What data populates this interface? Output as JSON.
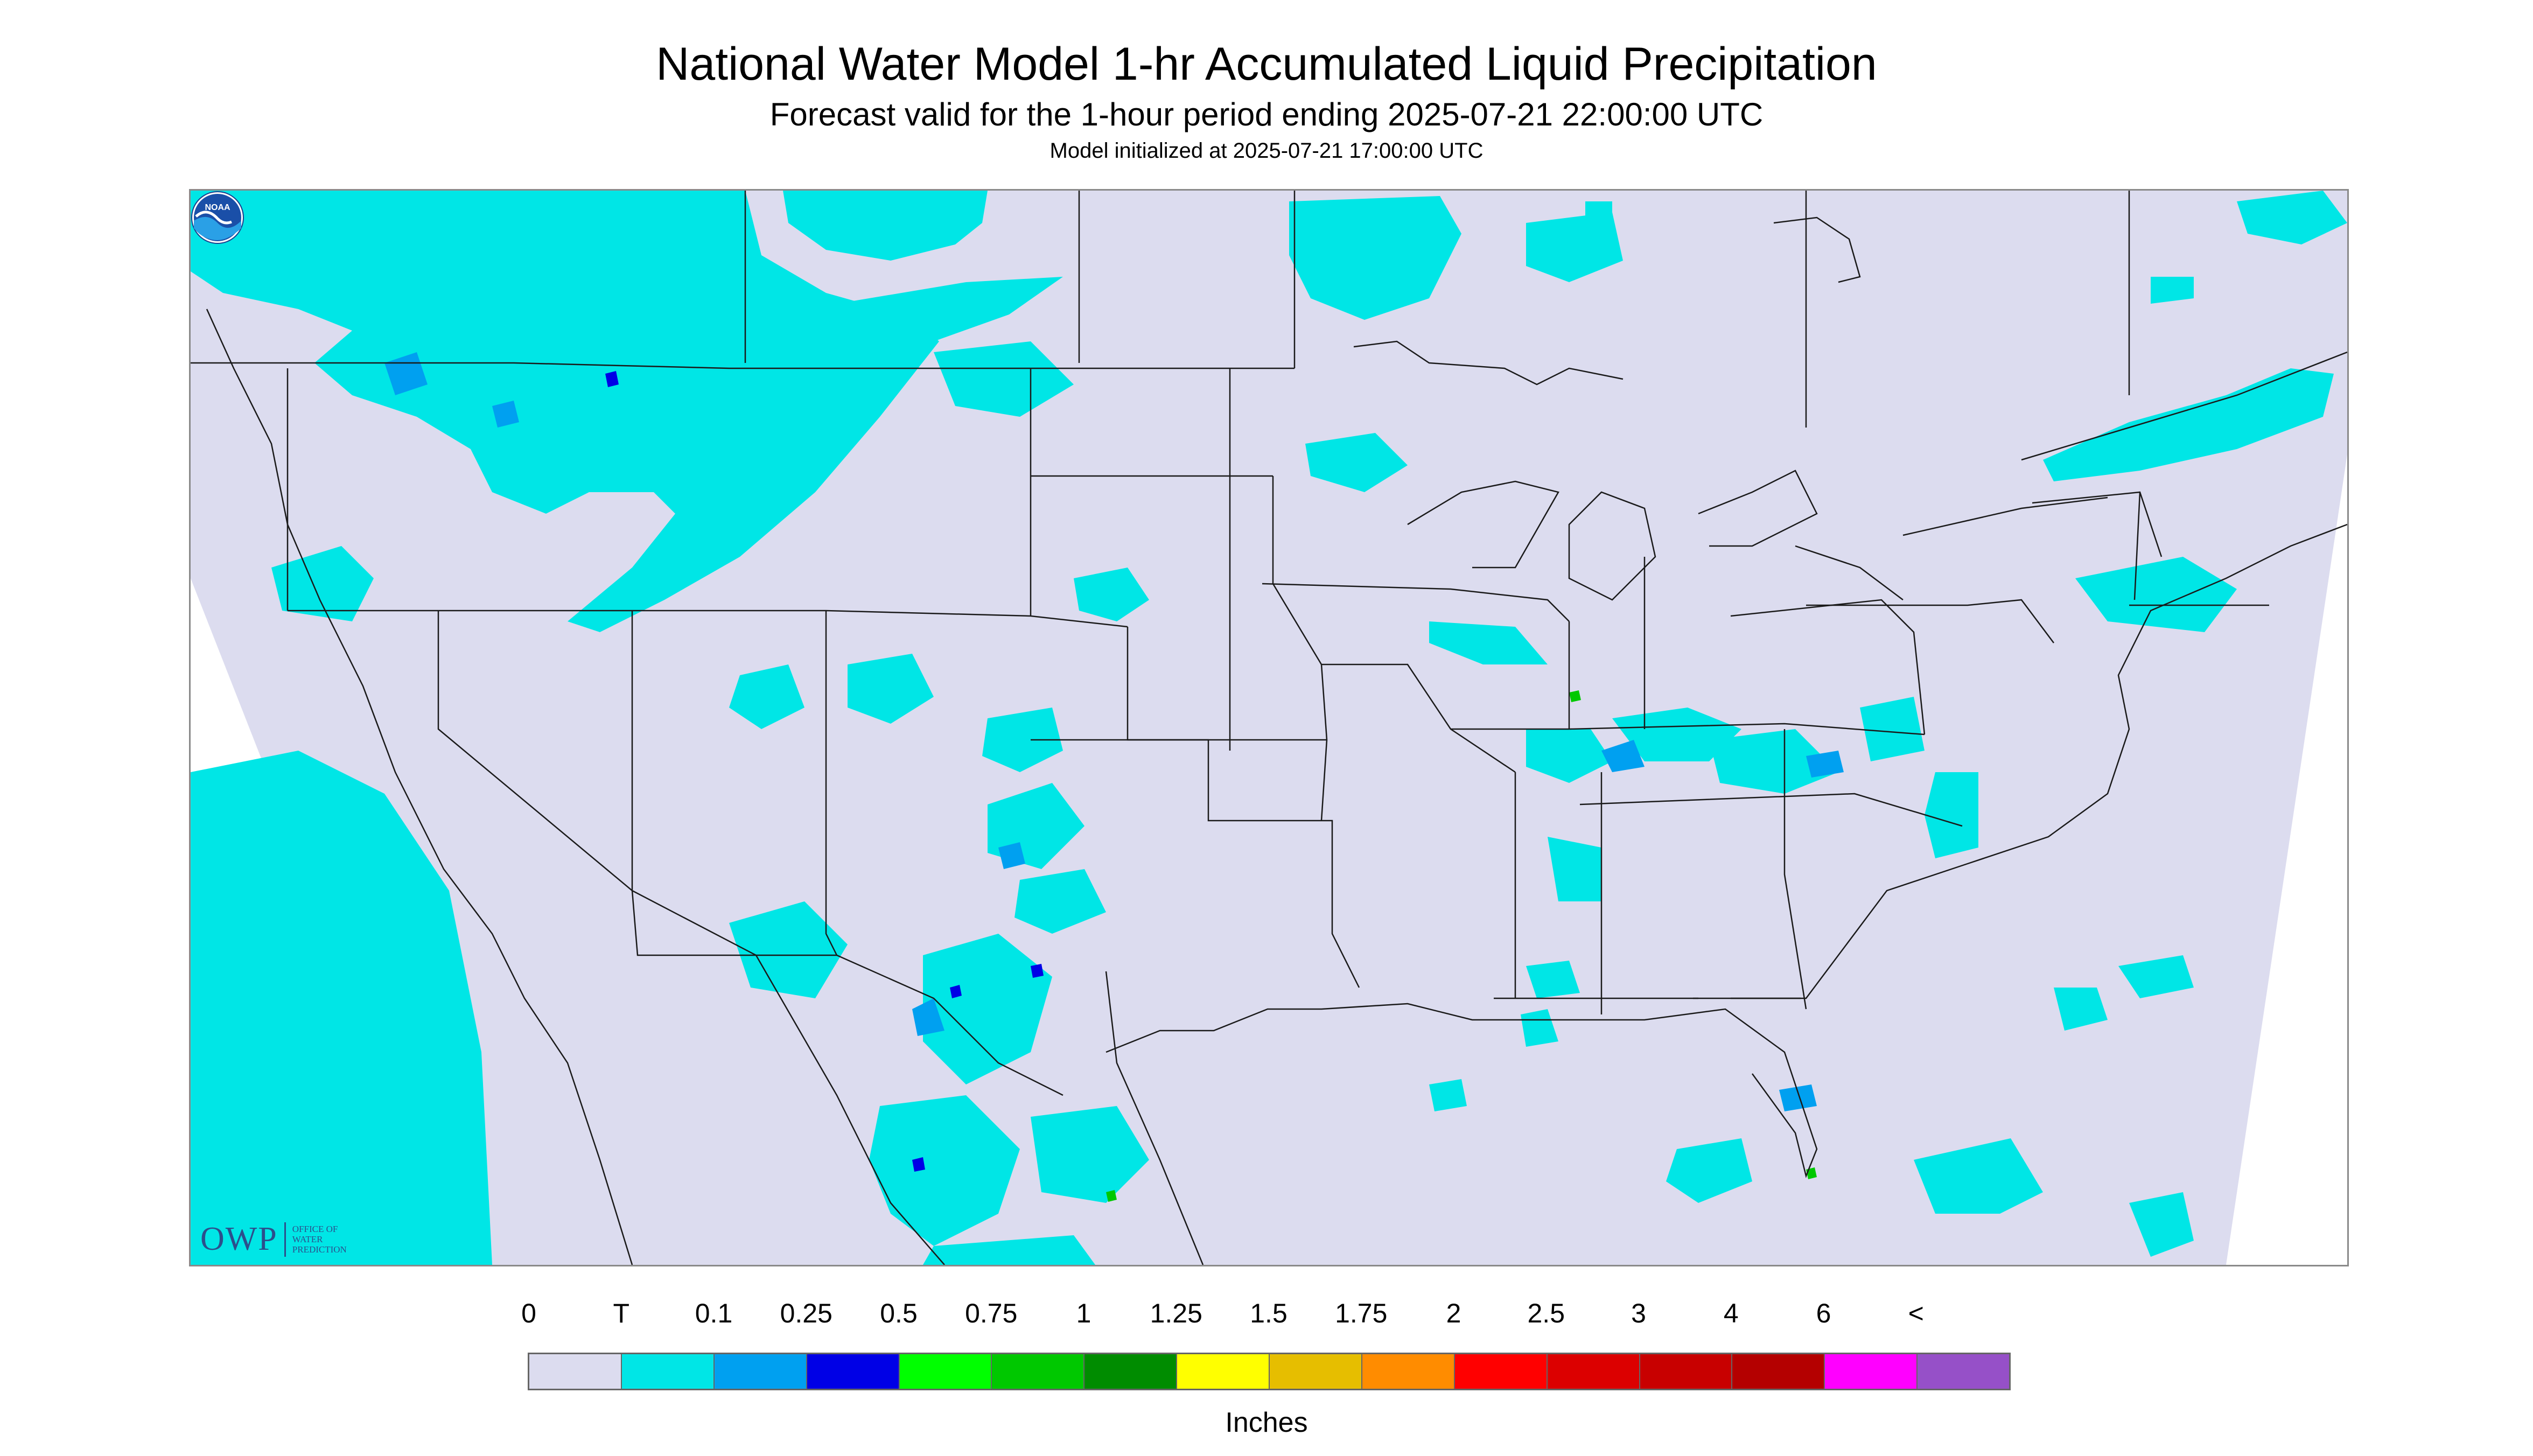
{
  "header": {
    "title": "National Water Model 1-hr Accumulated Liquid Precipitation",
    "subtitle": "Forecast valid for the 1-hour period ending 2025-07-21 22:00:00 UTC",
    "init_line": "Model initialized at 2025-07-21 17:00:00 UTC"
  },
  "map": {
    "background_color": "#dcdcef",
    "offgrid_color": "#ffffff",
    "boundary_color": "#1a1a1a",
    "precip_colors": {
      "trace": "#00e6e6",
      "light": "#00a0f0",
      "moderate": "#0000e6",
      "heavy": "#00c800"
    }
  },
  "logos": {
    "owp_mark": "OWP",
    "owp_text_1": "OFFICE OF",
    "owp_text_2": "WATER",
    "owp_text_3": "PREDICTION",
    "noaa_text": "NOAA",
    "noaa_icon": "noaa-seal-icon"
  },
  "legend": {
    "labels": [
      "0",
      "T",
      "0.1",
      "0.25",
      "0.5",
      "0.75",
      "1",
      "1.25",
      "1.5",
      "1.75",
      "2",
      "2.5",
      "3",
      "4",
      "6",
      "<"
    ],
    "colors": [
      "#dcdcef",
      "#00e6e6",
      "#00a0f0",
      "#0000e6",
      "#00ff00",
      "#00c800",
      "#008c00",
      "#ffff00",
      "#e6be00",
      "#ff8c00",
      "#ff0000",
      "#dc0000",
      "#c80000",
      "#b40000",
      "#ff00ff",
      "#9650c8"
    ],
    "units": "Inches"
  }
}
